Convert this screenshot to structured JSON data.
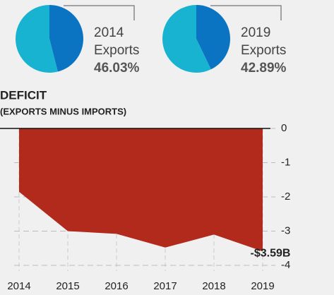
{
  "chart_data": [
    {
      "type": "pie",
      "title": "2014",
      "categories": [
        "Exports",
        null
      ],
      "values": [
        46.03,
        53.97
      ],
      "value_labels": [
        "46.03%",
        null
      ],
      "colors": [
        "#0b74c2",
        "#19b3d2"
      ]
    },
    {
      "type": "pie",
      "title": "2019",
      "categories": [
        "Exports",
        null
      ],
      "values": [
        42.89,
        57.11
      ],
      "value_labels": [
        "42.89%",
        null
      ],
      "colors": [
        "#0b74c2",
        "#19b3d2"
      ]
    },
    {
      "type": "area",
      "title": "DEFICIT",
      "subtitle": "(EXPORTS MINUS IMPORTS)",
      "x": [
        2014,
        2015,
        2016,
        2017,
        2018,
        2019
      ],
      "values": [
        -1.85,
        -3.0,
        -3.08,
        -3.48,
        -3.1,
        -3.59
      ],
      "value_labels": [
        null,
        null,
        null,
        null,
        null,
        "-$3.59B"
      ],
      "color": "#b22a1c",
      "xlim": [
        2014,
        2019
      ],
      "xticks": [
        2014,
        2015,
        2016,
        2017,
        2018,
        2019
      ],
      "ylim": [
        -4,
        0
      ],
      "yticks": [
        0,
        -1,
        -2,
        -3,
        -4
      ],
      "grid": true
    }
  ]
}
